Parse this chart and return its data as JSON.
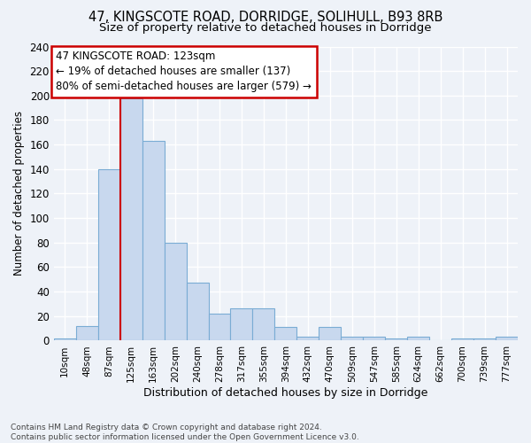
{
  "title1": "47, KINGSCOTE ROAD, DORRIDGE, SOLIHULL, B93 8RB",
  "title2": "Size of property relative to detached houses in Dorridge",
  "xlabel": "Distribution of detached houses by size in Dorridge",
  "ylabel": "Number of detached properties",
  "bar_labels": [
    "10sqm",
    "48sqm",
    "87sqm",
    "125sqm",
    "163sqm",
    "202sqm",
    "240sqm",
    "278sqm",
    "317sqm",
    "355sqm",
    "394sqm",
    "432sqm",
    "470sqm",
    "509sqm",
    "547sqm",
    "585sqm",
    "624sqm",
    "662sqm",
    "700sqm",
    "739sqm",
    "777sqm"
  ],
  "bar_heights": [
    2,
    12,
    140,
    198,
    163,
    80,
    47,
    22,
    26,
    26,
    11,
    3,
    11,
    3,
    3,
    2,
    3,
    0,
    2,
    2,
    3
  ],
  "bar_color": "#c8d8ee",
  "bar_edgecolor": "#7aacd4",
  "background_color": "#eef2f8",
  "grid_color": "#ffffff",
  "vline_x_index": 2.5,
  "vline_color": "#cc0000",
  "annotation_text": "47 KINGSCOTE ROAD: 123sqm\n← 19% of detached houses are smaller (137)\n80% of semi-detached houses are larger (579) →",
  "annotation_box_color": "#ffffff",
  "annotation_box_edgecolor": "#cc0000",
  "ylim": [
    0,
    240
  ],
  "yticks": [
    0,
    20,
    40,
    60,
    80,
    100,
    120,
    140,
    160,
    180,
    200,
    220,
    240
  ],
  "footnote": "Contains HM Land Registry data © Crown copyright and database right 2024.\nContains public sector information licensed under the Open Government Licence v3.0.",
  "title_fontsize": 10.5,
  "subtitle_fontsize": 9.5,
  "annot_fontsize": 8.5,
  "bar_width": 1.0
}
